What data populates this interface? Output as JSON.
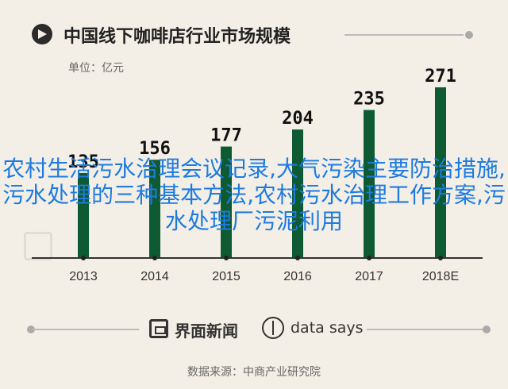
{
  "header": {
    "title": "中国线下咖啡店行业市场规模",
    "unit": "单位：亿元"
  },
  "chart_data": {
    "type": "bar",
    "title": "中国线下咖啡店行业市场规模",
    "ylabel": "单位：亿元",
    "categories": [
      "2013",
      "2014",
      "2015",
      "2016",
      "2017",
      "2018E"
    ],
    "values": [
      135,
      156,
      177,
      204,
      235,
      271
    ],
    "ylim": [
      0,
      271
    ],
    "grid": false,
    "bar_color": "#0e5a32"
  },
  "overlay_text": "农村生活污水治理会议记录,大气污染主要防治措施,污水处理的三种基本方法,农村污水治理工作方案,污水处理厂污泥利用",
  "footer": {
    "brand1": "界面新闻",
    "brand2": "data says",
    "source": "数据来源：中商产业研究院"
  },
  "colors": {
    "background": "#f4efe6",
    "bar": "#0e5a32",
    "overlay_text": "#1d7be0"
  }
}
